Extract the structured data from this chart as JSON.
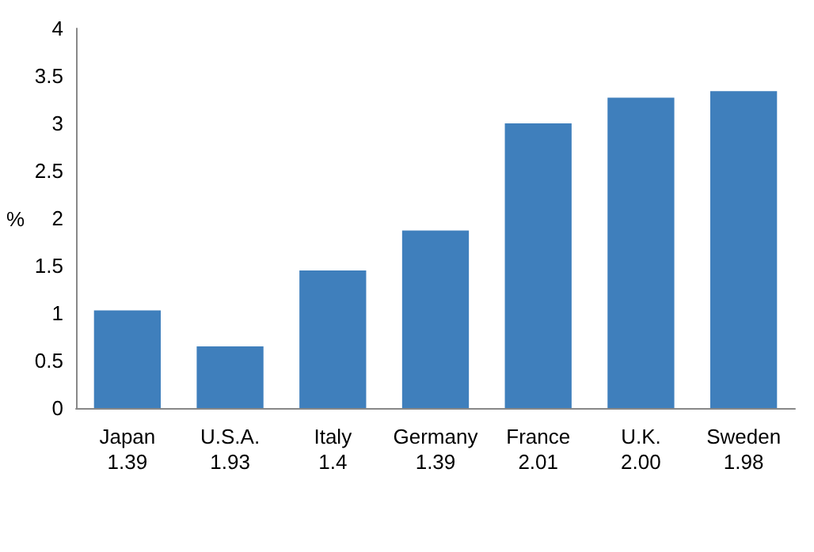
{
  "chart_data": {
    "type": "bar",
    "ylabel": "%",
    "categories": [
      "Japan\n1.39",
      "U.S.A.\n1.93",
      "Italy\n1.4",
      "Germany\n1.39",
      "France\n2.01",
      "U.K.\n2.00",
      "Sweden\n1.98"
    ],
    "values": [
      1.03,
      0.65,
      1.45,
      1.87,
      3.0,
      3.27,
      3.34
    ],
    "color": "#3f7fbc",
    "ylim": [
      0,
      4
    ],
    "yticks": [
      0,
      0.5,
      1,
      1.5,
      2,
      2.5,
      3,
      3.5,
      4
    ]
  }
}
